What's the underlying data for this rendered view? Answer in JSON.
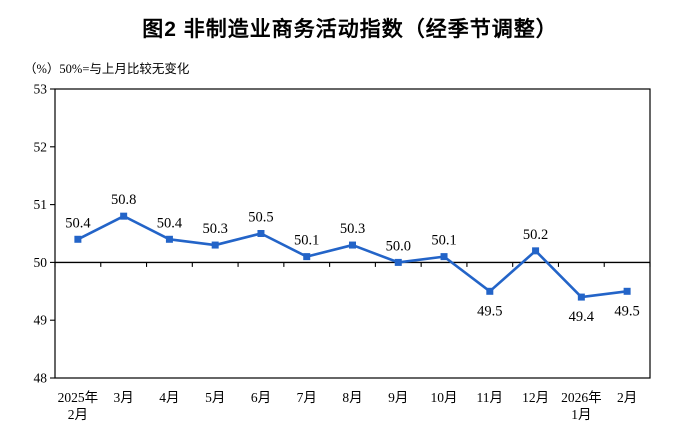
{
  "header": {
    "title": "图2 非制造业商务活动指数（经季节调整）",
    "subtitle": "（%）50%=与上月比较无变化"
  },
  "chart_data": {
    "type": "line",
    "title": "图2 非制造业商务活动指数（经季节调整）",
    "unit_note": "（%）50%=与上月比较无变化",
    "categories": [
      "2025年2月",
      "3月",
      "4月",
      "5月",
      "6月",
      "7月",
      "8月",
      "9月",
      "10月",
      "11月",
      "12月",
      "2026年1月",
      "2月"
    ],
    "category_label_lines": [
      [
        "2025年",
        "2月"
      ],
      [
        "3月"
      ],
      [
        "4月"
      ],
      [
        "5月"
      ],
      [
        "6月"
      ],
      [
        "7月"
      ],
      [
        "8月"
      ],
      [
        "9月"
      ],
      [
        "10月"
      ],
      [
        "11月"
      ],
      [
        "12月"
      ],
      [
        "2026年",
        "1月"
      ],
      [
        "2月"
      ]
    ],
    "series": [
      {
        "name": "非制造业商务活动指数",
        "values": [
          50.4,
          50.8,
          50.4,
          50.3,
          50.5,
          50.1,
          50.3,
          50.0,
          50.1,
          49.5,
          50.2,
          49.4,
          49.5
        ]
      }
    ],
    "data_labels": [
      "50.4",
      "50.8",
      "50.4",
      "50.3",
      "50.5",
      "50.1",
      "50.3",
      "50.0",
      "50.1",
      "49.5",
      "50.2",
      "49.4",
      "49.5"
    ],
    "data_label_positions": [
      "above",
      "above",
      "above",
      "above",
      "above",
      "above",
      "above",
      "above",
      "above",
      "below",
      "above",
      "below",
      "below"
    ],
    "ylim": [
      48,
      53
    ],
    "yticks": [
      53,
      52,
      51,
      50,
      49,
      48
    ],
    "reference_line_value": 50,
    "grid": false,
    "legend": "none",
    "colors": {
      "line": "#2364C8",
      "marker": "#2364C8",
      "axis": "#000000",
      "background": "#ffffff"
    }
  }
}
